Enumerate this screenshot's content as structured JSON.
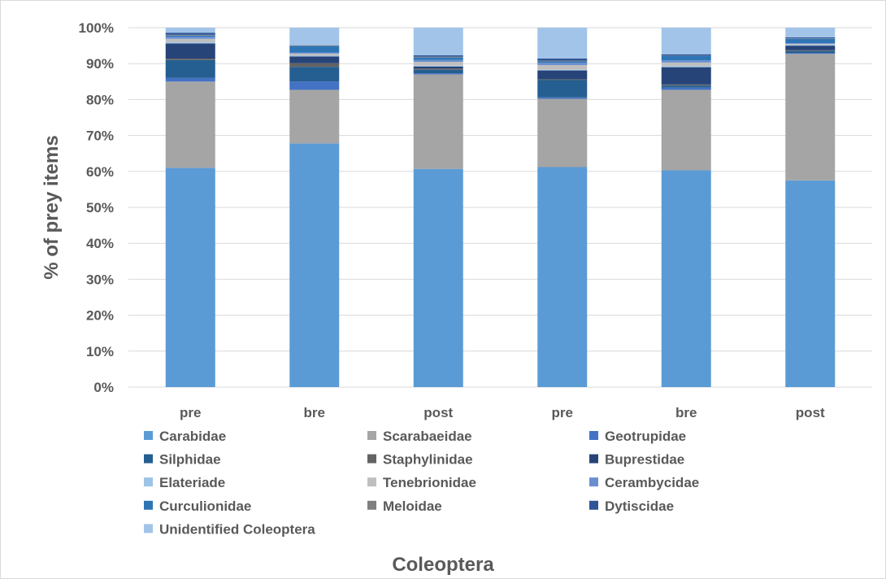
{
  "chart_data": {
    "type": "bar",
    "stacked": true,
    "percent_stacked": true,
    "title": "",
    "xlabel": "Coleoptera",
    "ylabel": "% of prey items",
    "ylim": [
      0,
      100
    ],
    "yticks": [
      "0%",
      "10%",
      "20%",
      "30%",
      "40%",
      "50%",
      "60%",
      "70%",
      "80%",
      "90%",
      "100%"
    ],
    "grid": "horizontal",
    "legend_position": "bottom",
    "categories": [
      "pre",
      "bre",
      "post",
      "pre",
      "bre",
      "post"
    ],
    "series": [
      {
        "name": "Carabidae",
        "color": "#5b9bd5",
        "values": [
          61.0,
          67.8,
          60.7,
          61.2,
          60.3,
          57.5
        ]
      },
      {
        "name": "Scarabaeidae",
        "color": "#a5a5a5",
        "values": [
          24.0,
          14.9,
          26.3,
          19.0,
          22.4,
          35.2
        ]
      },
      {
        "name": "Geotrupidae",
        "color": "#4472c4",
        "values": [
          1.0,
          2.3,
          0.3,
          0.4,
          0.6,
          0.2
        ]
      },
      {
        "name": "Silphidae",
        "color": "#255e91",
        "values": [
          5.0,
          4.1,
          1.0,
          4.8,
          0.6,
          0.6
        ]
      },
      {
        "name": "Staphylinidae",
        "color": "#636363",
        "values": [
          0.4,
          1.0,
          0.3,
          0.2,
          0.3,
          0.2
        ]
      },
      {
        "name": "Buprestidae",
        "color": "#264478",
        "values": [
          4.2,
          1.9,
          0.6,
          2.5,
          4.8,
          1.3
        ]
      },
      {
        "name": "Elateriade",
        "color": "#9dc3e6",
        "values": [
          0.3,
          0.2,
          0.2,
          0.2,
          0.3,
          0.2
        ]
      },
      {
        "name": "Tenebrionidae",
        "color": "#bfbfbf",
        "values": [
          1.0,
          0.6,
          1.1,
          1.3,
          1.0,
          0.3
        ]
      },
      {
        "name": "Cerambycidae",
        "color": "#698ed0",
        "values": [
          0.6,
          0.3,
          0.5,
          0.6,
          0.6,
          0.2
        ]
      },
      {
        "name": "Curculionidae",
        "color": "#2e75b6",
        "values": [
          0.3,
          1.8,
          0.7,
          0.4,
          1.3,
          1.2
        ]
      },
      {
        "name": "Meloidae",
        "color": "#7f7f7f",
        "values": [
          0.2,
          0.2,
          0.2,
          0.2,
          0.1,
          0.1
        ]
      },
      {
        "name": "Dytiscidae",
        "color": "#2f5597",
        "values": [
          0.6,
          0.0,
          0.4,
          0.6,
          0.3,
          0.3
        ]
      },
      {
        "name": "Unidentified Coleoptera",
        "color": "#a2c4e9",
        "values": [
          1.4,
          4.9,
          7.7,
          8.6,
          7.4,
          2.7
        ]
      }
    ]
  }
}
